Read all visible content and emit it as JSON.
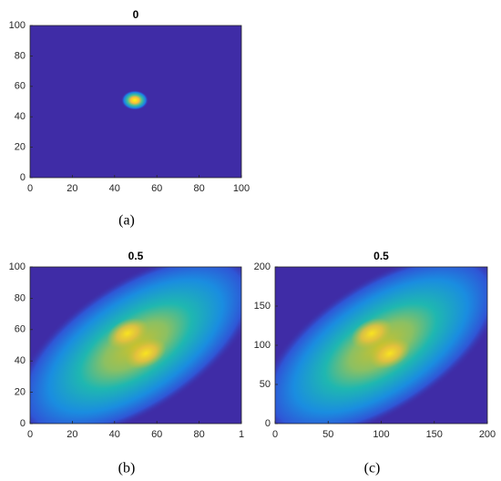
{
  "chart_data": [
    {
      "type": "heatmap",
      "title": "0",
      "caption": "(a)",
      "xlim": [
        0,
        100
      ],
      "ylim": [
        0,
        100
      ],
      "xticks": [
        0,
        20,
        40,
        60,
        80,
        100
      ],
      "yticks": [
        0,
        20,
        40,
        60,
        80,
        100
      ]
    },
    {
      "type": "heatmap",
      "title": "0.5",
      "caption": "(b)",
      "xlim": [
        0,
        100
      ],
      "ylim": [
        0,
        100
      ],
      "xticks": [
        0,
        20,
        40,
        60,
        80,
        {
          "value": 100,
          "label": "1"
        }
      ],
      "yticks": [
        0,
        20,
        40,
        60,
        80,
        100
      ]
    },
    {
      "type": "heatmap",
      "title": "0.5",
      "caption": "(c)",
      "xlim": [
        0,
        200
      ],
      "ylim": [
        0,
        200
      ],
      "xticks": [
        0,
        50,
        100,
        150,
        200
      ],
      "yticks": [
        0,
        50,
        100,
        150,
        200
      ]
    }
  ]
}
